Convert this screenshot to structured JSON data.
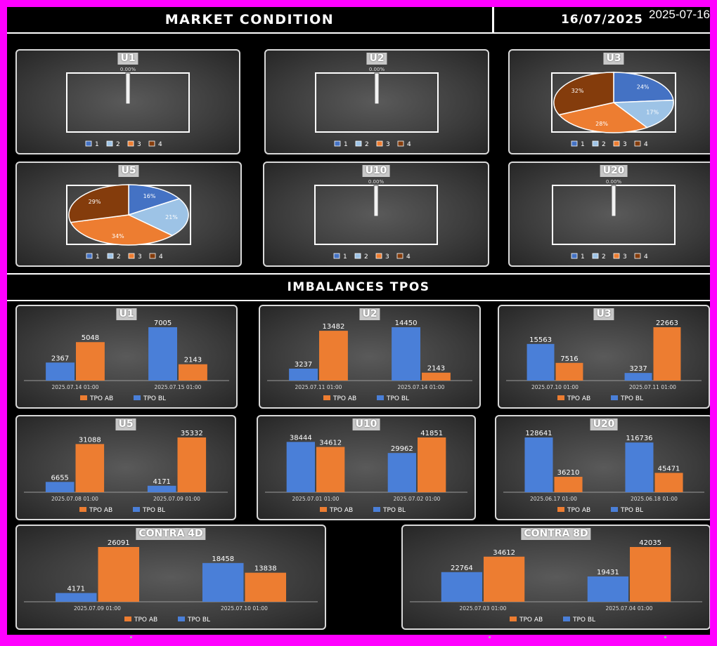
{
  "header": {
    "title": "MARKET CONDITION",
    "date": "16/07/2025",
    "stamp": "2025-07-16"
  },
  "section_title": "IMBALANCES TPOS",
  "colors": {
    "c1": "#4472c4",
    "c2": "#9dc3e6",
    "c3": "#ed7d31",
    "c4": "#843c0c",
    "ab": "#ed7d31",
    "bl": "#4a7fd8"
  },
  "pie_legend": [
    "1",
    "2",
    "3",
    "4"
  ],
  "bar_legend": {
    "ab": "TPO AB",
    "bl": "TPO BL"
  },
  "chart_data": [
    {
      "id": "pie-u1",
      "type": "pie",
      "title": "U1",
      "empty": true,
      "empty_label": "0.00%",
      "categories": [
        "1",
        "2",
        "3",
        "4"
      ],
      "values": [
        0,
        0,
        0,
        0
      ]
    },
    {
      "id": "pie-u2",
      "type": "pie",
      "title": "U2",
      "empty": true,
      "empty_label": "0.00%",
      "categories": [
        "1",
        "2",
        "3",
        "4"
      ],
      "values": [
        0,
        0,
        0,
        0
      ]
    },
    {
      "id": "pie-u3",
      "type": "pie",
      "title": "U3",
      "empty": false,
      "categories": [
        "1",
        "2",
        "3",
        "4"
      ],
      "values": [
        24,
        17,
        28,
        32
      ],
      "labels": [
        "24%",
        "17%",
        "28%",
        "32%"
      ]
    },
    {
      "id": "pie-u5",
      "type": "pie",
      "title": "U5",
      "empty": false,
      "categories": [
        "1",
        "2",
        "3",
        "4"
      ],
      "values": [
        16,
        21,
        34,
        29
      ],
      "labels": [
        "16%",
        "21%",
        "34%",
        "29%"
      ]
    },
    {
      "id": "pie-u10",
      "type": "pie",
      "title": "U10",
      "empty": true,
      "empty_label": "0.00%",
      "categories": [
        "1",
        "2",
        "3",
        "4"
      ],
      "values": [
        0,
        0,
        0,
        0
      ]
    },
    {
      "id": "pie-u20",
      "type": "pie",
      "title": "U20",
      "empty": true,
      "empty_label": "0.00%",
      "categories": [
        "1",
        "2",
        "3",
        "4"
      ],
      "values": [
        0,
        0,
        0,
        0
      ]
    },
    {
      "id": "bar-u1",
      "type": "bar",
      "title": "U1",
      "categories": [
        "2025.07.14 01:00",
        "2025.07.15 01:00"
      ],
      "series": [
        {
          "name": "TPO BL",
          "values": [
            2367,
            7005
          ]
        },
        {
          "name": "TPO AB",
          "values": [
            5048,
            2143
          ]
        }
      ]
    },
    {
      "id": "bar-u2",
      "type": "bar",
      "title": "U2",
      "categories": [
        "2025.07.11 01:00",
        "2025.07.14 01:00"
      ],
      "series": [
        {
          "name": "TPO BL",
          "values": [
            3237,
            14450
          ]
        },
        {
          "name": "TPO AB",
          "values": [
            13482,
            2143
          ]
        }
      ]
    },
    {
      "id": "bar-u3",
      "type": "bar",
      "title": "U3",
      "categories": [
        "2025.07.10 01:00",
        "2025.07.11 01:00"
      ],
      "series": [
        {
          "name": "TPO BL",
          "values": [
            15563,
            3237
          ]
        },
        {
          "name": "TPO AB",
          "values": [
            7516,
            22663
          ]
        }
      ]
    },
    {
      "id": "bar-u5",
      "type": "bar",
      "title": "U5",
      "categories": [
        "2025.07.08 01:00",
        "2025.07.09 01:00"
      ],
      "series": [
        {
          "name": "TPO BL",
          "values": [
            6655,
            4171
          ]
        },
        {
          "name": "TPO AB",
          "values": [
            31088,
            35332
          ]
        }
      ]
    },
    {
      "id": "bar-u10",
      "type": "bar",
      "title": "U10",
      "categories": [
        "2025.07.01 01:00",
        "2025.07.02 01:00"
      ],
      "series": [
        {
          "name": "TPO BL",
          "values": [
            38444,
            29962
          ]
        },
        {
          "name": "TPO AB",
          "values": [
            34612,
            41851
          ]
        }
      ]
    },
    {
      "id": "bar-u20",
      "type": "bar",
      "title": "U20",
      "categories": [
        "2025.06.17 01:00",
        "2025.06.18 01:00"
      ],
      "series": [
        {
          "name": "TPO BL",
          "values": [
            128641,
            116736
          ]
        },
        {
          "name": "TPO AB",
          "values": [
            36210,
            45471
          ]
        }
      ]
    },
    {
      "id": "bar-c4d",
      "type": "bar",
      "title": "CONTRA 4D",
      "categories": [
        "2025.07.09 01:00",
        "2025.07.10 01:00"
      ],
      "series": [
        {
          "name": "TPO BL",
          "values": [
            4171,
            18458
          ]
        },
        {
          "name": "TPO AB",
          "values": [
            26091,
            13838
          ]
        }
      ]
    },
    {
      "id": "bar-c8d",
      "type": "bar",
      "title": "CONTRA 8D",
      "categories": [
        "2025.07.03 01:00",
        "2025.07.04 01:00"
      ],
      "series": [
        {
          "name": "TPO BL",
          "values": [
            22764,
            19431
          ]
        },
        {
          "name": "TPO AB",
          "values": [
            34612,
            42035
          ]
        }
      ]
    }
  ]
}
